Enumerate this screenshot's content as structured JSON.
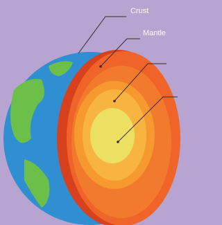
{
  "labels": {
    "crust": "Crust",
    "mantle": "Mantle"
  }
}
